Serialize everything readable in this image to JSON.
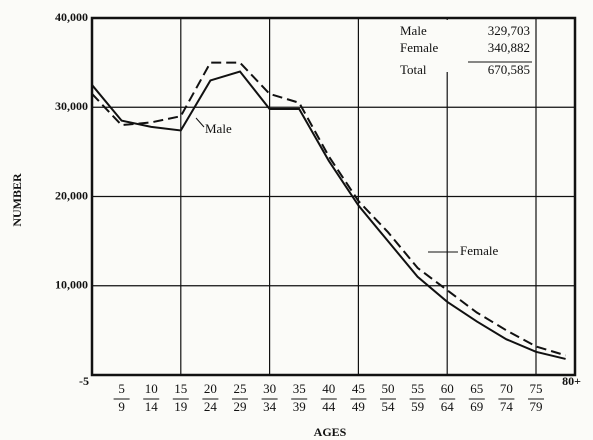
{
  "chart_data": {
    "type": "line",
    "ylabel": "NUMBER",
    "xlabel": "AGES",
    "categories": [
      [
        "-5"
      ],
      [
        "5",
        "9"
      ],
      [
        "10",
        "14"
      ],
      [
        "15",
        "19"
      ],
      [
        "20",
        "24"
      ],
      [
        "25",
        "29"
      ],
      [
        "30",
        "34"
      ],
      [
        "35",
        "39"
      ],
      [
        "40",
        "44"
      ],
      [
        "45",
        "49"
      ],
      [
        "50",
        "54"
      ],
      [
        "55",
        "59"
      ],
      [
        "60",
        "64"
      ],
      [
        "65",
        "69"
      ],
      [
        "70",
        "74"
      ],
      [
        "75",
        "79"
      ],
      [
        "80+"
      ]
    ],
    "series": [
      {
        "name": "Male",
        "color": "#111111",
        "dash": false,
        "values": [
          32500,
          28500,
          27800,
          27400,
          33000,
          34000,
          29800,
          29800,
          24000,
          19000,
          15000,
          11000,
          8200,
          6000,
          4000,
          2600,
          1800
        ]
      },
      {
        "name": "Female",
        "color": "#111111",
        "dash": true,
        "values": [
          31500,
          28000,
          28300,
          29000,
          35000,
          35000,
          31500,
          30500,
          24500,
          19500,
          16000,
          12000,
          9500,
          7000,
          5000,
          3200,
          2200
        ]
      }
    ],
    "ylim": [
      0,
      40000
    ],
    "yticks": [
      {
        "value": 10000,
        "label": "10,000"
      },
      {
        "value": 20000,
        "label": "20,000"
      },
      {
        "value": 30000,
        "label": "30,000"
      },
      {
        "value": 40000,
        "label": "40,000"
      }
    ],
    "grid": true,
    "summary": [
      {
        "label": "Male",
        "value": "329,703"
      },
      {
        "label": "Female",
        "value": "340,882"
      },
      {
        "label": "Total",
        "value": "670,585"
      }
    ]
  }
}
